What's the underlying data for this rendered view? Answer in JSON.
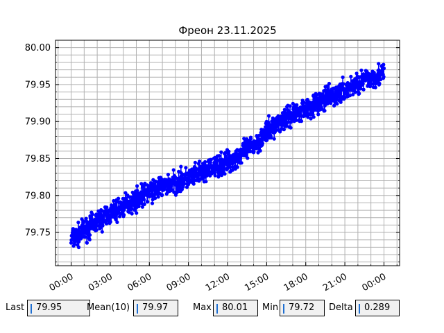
{
  "chart_data": {
    "type": "line",
    "title": "Фреон 23.11.2025",
    "xlabel": "",
    "ylabel": "",
    "x_ticks": [
      "00:00",
      "03:00",
      "06:00",
      "09:00",
      "12:00",
      "15:00",
      "18:00",
      "21:00",
      "00:00"
    ],
    "x_range_hours": [
      -1.2,
      25.2
    ],
    "y_ticks": [
      "79.75",
      "79.80",
      "79.85",
      "79.90",
      "79.95",
      "80.00"
    ],
    "ylim": [
      79.705,
      80.01
    ],
    "grid": true,
    "legend": "none",
    "series": [
      {
        "color": "#0000ff",
        "marker": "circle",
        "x_hours": [
          0,
          1,
          2,
          3,
          4,
          5,
          6,
          7,
          8,
          9,
          10,
          11,
          12,
          13,
          14,
          15,
          16,
          17,
          18,
          19,
          20,
          21,
          22,
          23,
          24
        ],
        "y": [
          79.74,
          79.752,
          79.765,
          79.775,
          79.785,
          79.795,
          79.805,
          79.812,
          79.818,
          79.823,
          79.83,
          79.838,
          79.845,
          79.855,
          79.868,
          79.885,
          79.9,
          79.91,
          79.918,
          79.926,
          79.934,
          79.942,
          79.952,
          79.96,
          79.965
        ],
        "spread": 0.022
      }
    ]
  },
  "stats": {
    "last_label": "Last",
    "last_value": "79.95",
    "mean_label": "Mean(10)",
    "mean_value": "79.97",
    "max_label": "Max",
    "max_value": "80.01",
    "min_label": "Min",
    "min_value": "79.72",
    "delta_label": "Delta",
    "delta_value": "0.289"
  }
}
